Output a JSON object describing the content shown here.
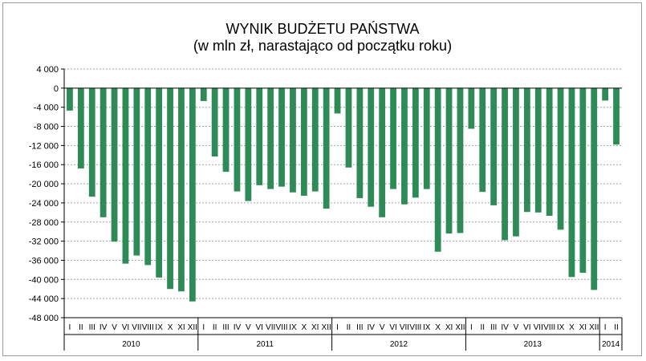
{
  "chart_data": {
    "type": "bar",
    "title": "WYNIK BUDŻETU PAŃSTWA",
    "subtitle": "(w mln zł, narastająco od początku roku)",
    "ylim": [
      -48000,
      4000
    ],
    "yticks": [
      4000,
      0,
      -4000,
      -8000,
      -12000,
      -16000,
      -20000,
      -24000,
      -28000,
      -32000,
      -36000,
      -40000,
      -44000,
      -48000
    ],
    "ytick_labels": [
      "4 000",
      "0",
      "-4 000",
      "-8 000",
      "-12 000",
      "-16 000",
      "-20 000",
      "-24 000",
      "-28 000",
      "-32 000",
      "-36 000",
      "-40 000",
      "-44 000",
      "-48 000"
    ],
    "grid": true,
    "bar_color": "#2e8b57",
    "groups": [
      {
        "year": "2010",
        "categories": [
          "I",
          "II",
          "III",
          "IV",
          "V",
          "VI",
          "VII",
          "VIII",
          "IX",
          "X",
          "XI",
          "XII"
        ],
        "values": [
          -4700,
          -16800,
          -22700,
          -27000,
          -32100,
          -36700,
          -35000,
          -37000,
          -39600,
          -42000,
          -42500,
          -44600
        ]
      },
      {
        "year": "2011",
        "categories": [
          "I",
          "II",
          "III",
          "IV",
          "V",
          "VI",
          "VII",
          "VIII",
          "IX",
          "X",
          "XI",
          "XII"
        ],
        "values": [
          -2700,
          -14300,
          -17500,
          -21600,
          -23600,
          -20300,
          -21100,
          -20600,
          -21800,
          -22500,
          -21600,
          -25200
        ]
      },
      {
        "year": "2012",
        "categories": [
          "I",
          "II",
          "III",
          "IV",
          "V",
          "VI",
          "VII",
          "VIII",
          "IX",
          "X",
          "XI",
          "XII"
        ],
        "values": [
          -5300,
          -16600,
          -23000,
          -24800,
          -27000,
          -21100,
          -24300,
          -22900,
          -21100,
          -34200,
          -30400,
          -30300
        ]
      },
      {
        "year": "2013",
        "categories": [
          "I",
          "II",
          "III",
          "IV",
          "V",
          "VI",
          "VII",
          "VIII",
          "IX",
          "X",
          "XI",
          "XII"
        ],
        "values": [
          -8500,
          -21700,
          -24500,
          -31800,
          -31000,
          -25900,
          -26000,
          -26700,
          -29600,
          -39500,
          -38600,
          -42200
        ]
      },
      {
        "year": "2014",
        "categories": [
          "I",
          "II"
        ],
        "values": [
          -2600,
          -11800
        ]
      }
    ]
  }
}
